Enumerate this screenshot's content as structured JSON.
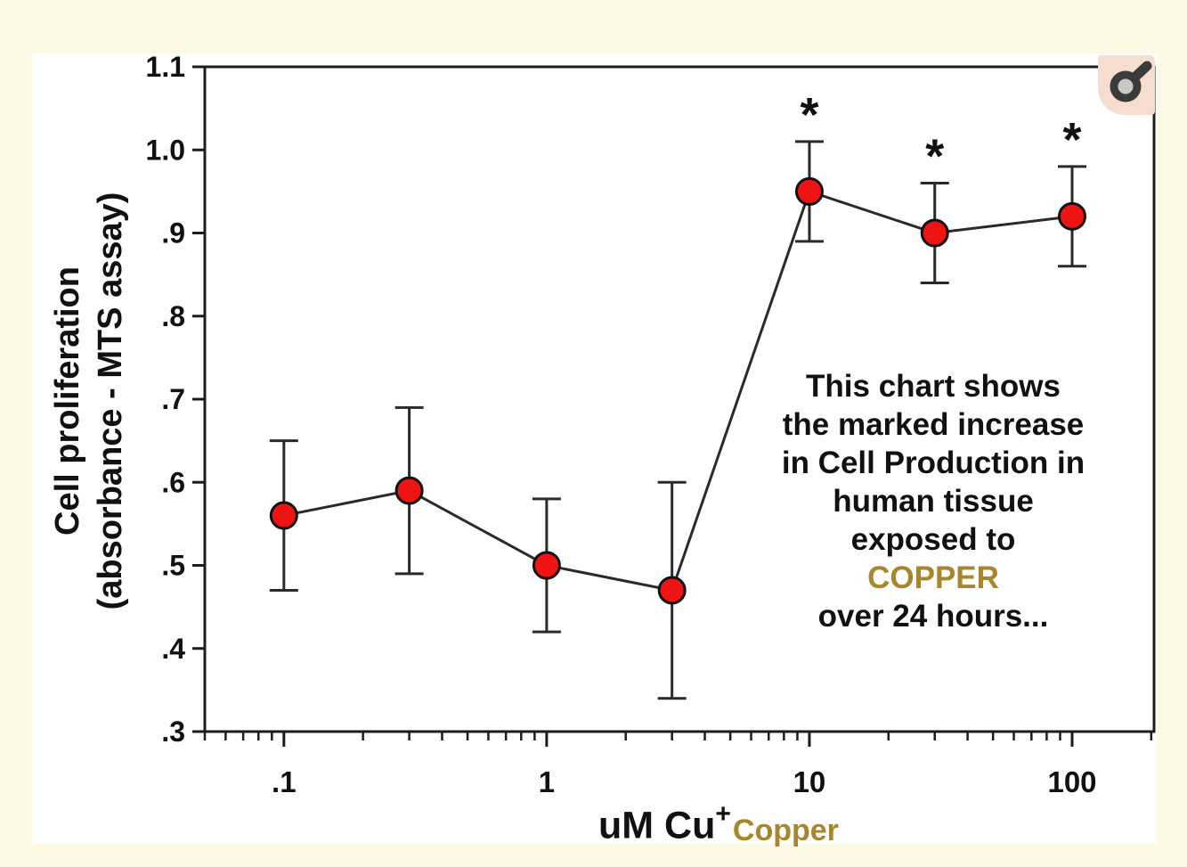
{
  "colors": {
    "page_background": "#fdf9e5",
    "panel_background": "#ffffff",
    "axis_color": "#1c1c1c",
    "text_color": "#111111",
    "marker_fill": "#ee1414",
    "marker_stroke": "#111111",
    "line_color": "#2a2a2a",
    "highlight_gold": "#a8862b",
    "icon_background": "#f6ddcf",
    "icon_glyph": "#3b3b3b",
    "icon_glyph_inner": "#c9c9c6"
  },
  "icon_button": {
    "name": "magnifier"
  },
  "chart_data": {
    "type": "line",
    "x_scale": "log",
    "grid": false,
    "legend": false,
    "xlim": [
      0.05,
      205
    ],
    "ylim": [
      0.3,
      1.1
    ],
    "xlabel": "uM Cu",
    "xlabel_superscript": "+",
    "xlabel_suffix": "Copper",
    "ylabel_line1": "Cell proliferation",
    "ylabel_line2": "(absorbance - MTS assay)",
    "xticks": {
      "values": [
        0.1,
        1,
        10,
        100
      ],
      "labels": [
        ".1",
        "1",
        "10",
        "100"
      ]
    },
    "x_minor_ticks": [
      0.05,
      0.06,
      0.07,
      0.08,
      0.09,
      0.2,
      0.3,
      0.4,
      0.5,
      0.6,
      0.7,
      0.8,
      0.9,
      2,
      3,
      4,
      5,
      6,
      7,
      8,
      9,
      20,
      30,
      40,
      50,
      60,
      70,
      80,
      90,
      200
    ],
    "yticks": {
      "values": [
        0.3,
        0.4,
        0.5,
        0.6,
        0.7,
        0.8,
        0.9,
        1.0,
        1.1
      ],
      "labels": [
        ".3",
        ".4",
        ".5",
        ".6",
        ".7",
        ".8",
        ".9",
        "1.0",
        "1.1"
      ]
    },
    "points": [
      {
        "x": 0.1,
        "y": 0.56,
        "err_low": 0.47,
        "err_high": 0.65,
        "marker": null
      },
      {
        "x": 0.3,
        "y": 0.59,
        "err_low": 0.49,
        "err_high": 0.69,
        "marker": null
      },
      {
        "x": 1,
        "y": 0.5,
        "err_low": 0.42,
        "err_high": 0.58,
        "marker": null
      },
      {
        "x": 3,
        "y": 0.47,
        "err_low": 0.34,
        "err_high": 0.6,
        "marker": null
      },
      {
        "x": 10,
        "y": 0.95,
        "err_low": 0.89,
        "err_high": 1.01,
        "marker": "*"
      },
      {
        "x": 30,
        "y": 0.9,
        "err_low": 0.84,
        "err_high": 0.96,
        "marker": "*"
      },
      {
        "x": 100,
        "y": 0.92,
        "err_low": 0.86,
        "err_high": 0.98,
        "marker": "*"
      }
    ],
    "annotation": {
      "lines": [
        "This chart shows",
        "the marked increase",
        "in Cell Production in",
        "human tissue",
        "exposed to",
        "COPPER",
        "over 24 hours..."
      ],
      "highlight_line_index": 5
    }
  }
}
